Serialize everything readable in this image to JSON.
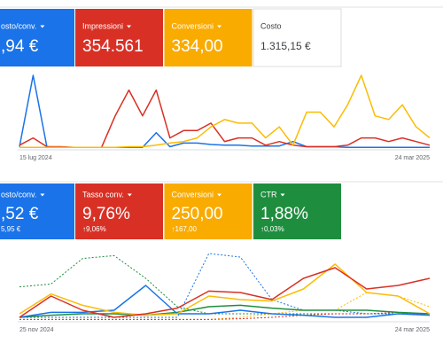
{
  "panels": [
    {
      "cards": [
        {
          "label": "osto/conv.",
          "value": ",94 €",
          "color": "#1a73e8"
        },
        {
          "label": "Impressioni",
          "value": "354.561",
          "color": "#d93025"
        },
        {
          "label": "Conversioni",
          "value": "334,00",
          "color": "#f9ab00"
        },
        {
          "label": "Costo",
          "value": "1.315,15 €",
          "color": "#ffffff"
        }
      ],
      "chart": {
        "type": "line",
        "ylim": [
          0,
          100
        ],
        "categories": [
          "15 lug 2024",
          null,
          null,
          null,
          null,
          null,
          null,
          null,
          null,
          null,
          null,
          null,
          null,
          null,
          null,
          null,
          null,
          null,
          null,
          null,
          null,
          null,
          null,
          null,
          null,
          null,
          null,
          null,
          null,
          null,
          "24 mar 2025"
        ],
        "series": [
          {
            "color": "#1a73e8",
            "values": [
              3,
              100,
              3,
              2,
              2,
              2,
              2,
              2,
              2,
              2,
              22,
              3,
              8,
              8,
              6,
              5,
              5,
              4,
              4,
              4,
              10,
              3,
              3,
              3,
              2,
              2,
              2,
              2,
              2,
              2,
              2
            ]
          },
          {
            "color": "#d93025",
            "values": [
              5,
              15,
              3,
              3,
              2,
              2,
              2,
              45,
              80,
              45,
              80,
              15,
              25,
              25,
              35,
              10,
              15,
              15,
              5,
              10,
              5,
              3,
              3,
              3,
              5,
              15,
              15,
              10,
              15,
              10,
              5
            ]
          },
          {
            "color": "#fbbc04",
            "values": [
              2,
              2,
              2,
              2,
              2,
              2,
              2,
              2,
              3,
              3,
              5,
              8,
              10,
              15,
              30,
              40,
              35,
              35,
              15,
              30,
              5,
              50,
              50,
              30,
              60,
              100,
              45,
              40,
              60,
              30,
              15
            ]
          }
        ]
      }
    },
    {
      "cards": [
        {
          "label": "osto/conv.",
          "value": ",52 €",
          "delta": "5,95 €",
          "color": "#1a73e8"
        },
        {
          "label": "Tasso conv.",
          "value": "9,76%",
          "delta": "↑9,06%",
          "color": "#d93025"
        },
        {
          "label": "Conversioni",
          "value": "250,00",
          "delta": "↑167,00",
          "color": "#f9ab00"
        },
        {
          "label": "CTR",
          "value": "1,88%",
          "delta": "↑0,03%",
          "color": "#1e8e3e"
        }
      ],
      "chart": {
        "type": "line",
        "ylim": [
          0,
          100
        ],
        "categories": [
          "25 nov 2024",
          null,
          null,
          null,
          null,
          null,
          null,
          null,
          null,
          null,
          null,
          null,
          null,
          "24 mar 2025"
        ],
        "series": [
          {
            "color": "#1e8e3e",
            "dash": true,
            "values": [
              48,
              52,
              88,
              92,
              60,
              20,
              10,
              10,
              10,
              10,
              10,
              10,
              10,
              10
            ]
          },
          {
            "color": "#1a73e8",
            "dash": true,
            "values": [
              5,
              5,
              5,
              5,
              5,
              5,
              95,
              90,
              30,
              15,
              15,
              10,
              10,
              10
            ]
          },
          {
            "color": "#fbbc04",
            "dash": true,
            "values": [
              2,
              2,
              2,
              2,
              2,
              2,
              2,
              5,
              10,
              15,
              15,
              40,
              35,
              20
            ]
          },
          {
            "color": "#d93025",
            "dash": true,
            "values": [
              2,
              2,
              2,
              2,
              2,
              2,
              2,
              3,
              5,
              8,
              10,
              10,
              12,
              8
            ]
          },
          {
            "color": "#1e8e3e",
            "values": [
              5,
              8,
              10,
              10,
              8,
              12,
              20,
              22,
              18,
              15,
              15,
              15,
              12,
              10
            ]
          },
          {
            "color": "#1a73e8",
            "values": [
              5,
              12,
              12,
              15,
              50,
              10,
              10,
              15,
              10,
              8,
              5,
              5,
              10,
              8
            ]
          },
          {
            "color": "#fbbc04",
            "values": [
              10,
              38,
              22,
              12,
              8,
              10,
              35,
              30,
              28,
              45,
              80,
              40,
              35,
              10
            ]
          },
          {
            "color": "#d93025",
            "values": [
              5,
              35,
              15,
              5,
              10,
              18,
              42,
              40,
              30,
              60,
              75,
              45,
              50,
              60
            ]
          }
        ]
      }
    }
  ]
}
